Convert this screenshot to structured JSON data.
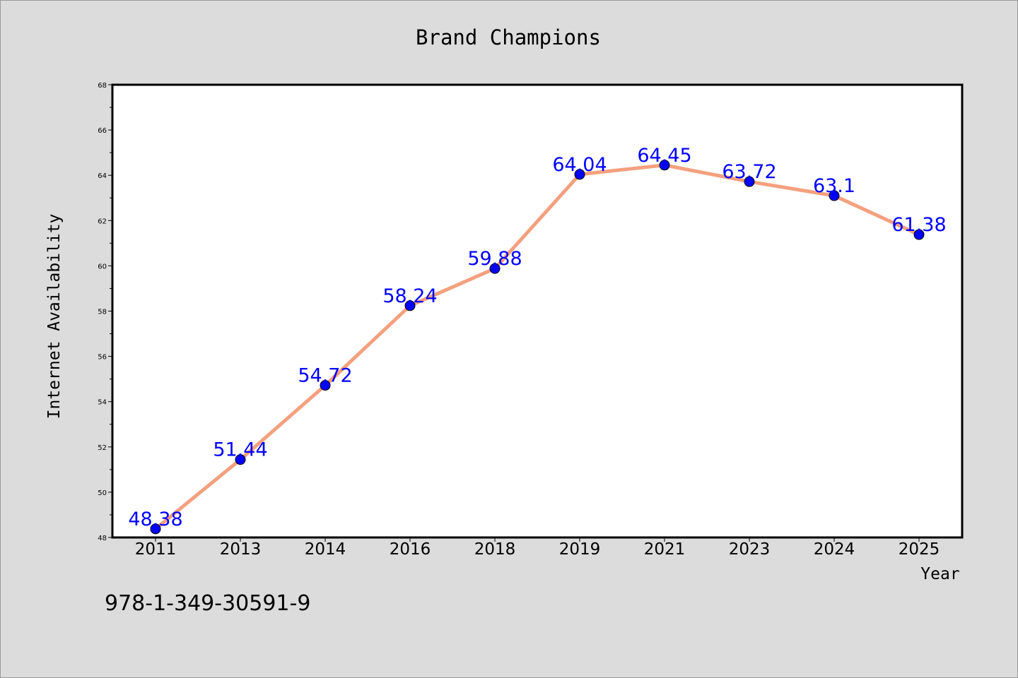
{
  "chart_data": {
    "type": "line",
    "title": "Brand Champions",
    "xlabel": "Year",
    "ylabel": "Internet Availability",
    "categories": [
      "2011",
      "2013",
      "2014",
      "2016",
      "2018",
      "2019",
      "2021",
      "2023",
      "2024",
      "2025"
    ],
    "series": [
      {
        "values": [
          48.38,
          51.44,
          54.72,
          58.24,
          59.88,
          64.04,
          64.45,
          63.72,
          63.1,
          61.38
        ],
        "data_labels": [
          "48.38",
          "51.44",
          "54.72",
          "58.24",
          "59.88",
          "64.04",
          "64.45",
          "63.72",
          "63.1",
          "61.38"
        ],
        "line_color": "#f4a07e",
        "marker_color": "#0000ff"
      }
    ],
    "ylim": [
      48,
      68
    ],
    "yticks": [
      48,
      50,
      52,
      54,
      56,
      58,
      60,
      62,
      64,
      66,
      68
    ],
    "grid": false,
    "legend": "none"
  },
  "caption": "978-1-349-30591-9",
  "colors": {
    "background": "#dcdcdc",
    "plot_background": "#ffffff",
    "label_color": "#0000ff"
  }
}
